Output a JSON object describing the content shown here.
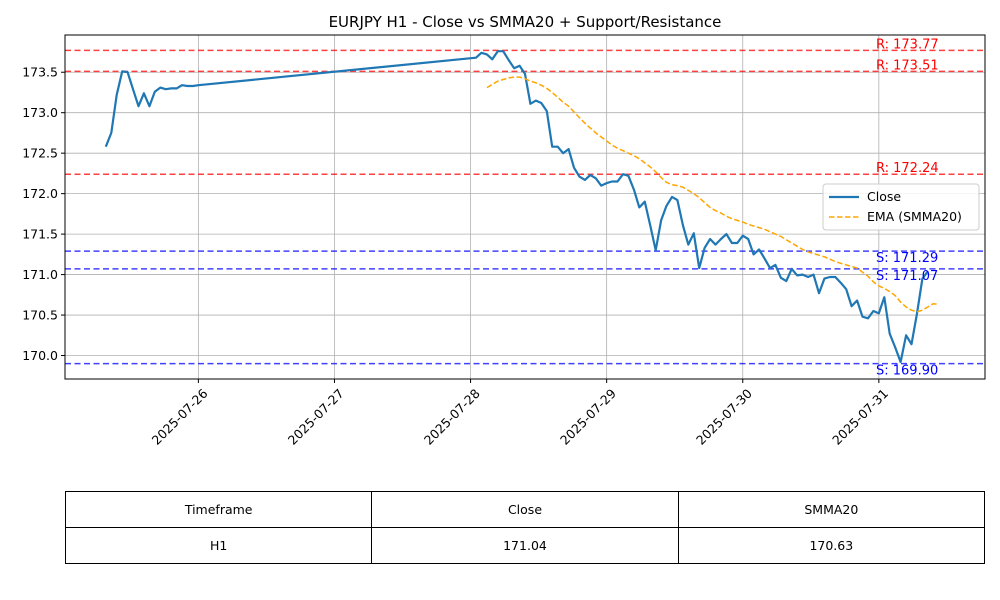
{
  "chart_data": {
    "type": "line",
    "title": "EURJPY H1 - Close vs SMMA20 + Support/Resistance",
    "xlabel": "",
    "ylabel": "",
    "x_tick_labels": [
      "2025-07-26",
      "2025-07-27",
      "2025-07-28",
      "2025-07-29",
      "2025-07-30",
      "2025-07-31"
    ],
    "y_ticks": [
      170.0,
      170.5,
      171.0,
      171.5,
      172.0,
      172.5,
      173.0,
      173.5
    ],
    "y_tick_labels": [
      "170.0",
      "170.5",
      "171.0",
      "171.5",
      "172.0",
      "172.5",
      "173.0",
      "173.5"
    ],
    "ylim": [
      169.71,
      173.96
    ],
    "xlim_days_from_2025_07_26": [
      -0.98,
      5.78
    ],
    "grid": true,
    "legend_position": "center-right",
    "series": [
      {
        "name": "Close",
        "color": "#1f77b4",
        "style": "solid",
        "x_days_from_2025_07_26": [
          -0.68,
          -0.64,
          -0.6,
          -0.56,
          -0.52,
          -0.48,
          -0.44,
          -0.4,
          -0.36,
          -0.32,
          -0.28,
          -0.24,
          -0.2,
          -0.16,
          -0.12,
          -0.08,
          -0.04,
          0.0,
          2.04,
          2.08,
          2.12,
          2.16,
          2.2,
          2.24,
          2.28,
          2.32,
          2.36,
          2.4,
          2.44,
          2.48,
          2.52,
          2.56,
          2.6,
          2.64,
          2.68,
          2.72,
          2.76,
          2.8,
          2.84,
          2.88,
          2.92,
          2.96,
          3.0,
          3.04,
          3.08,
          3.12,
          3.16,
          3.2,
          3.24,
          3.28,
          3.32,
          3.36,
          3.4,
          3.44,
          3.48,
          3.52,
          3.56,
          3.6,
          3.64,
          3.68,
          3.72,
          3.76,
          3.8,
          3.84,
          3.88,
          3.92,
          3.96,
          4.0,
          4.04,
          4.08,
          4.12,
          4.16,
          4.2,
          4.24,
          4.28,
          4.32,
          4.36,
          4.4,
          4.44,
          4.48,
          4.52,
          4.56,
          4.6,
          4.64,
          4.68,
          4.72,
          4.76,
          4.8,
          4.84,
          4.88,
          4.92,
          4.96,
          5.0,
          5.04,
          5.08,
          5.12,
          5.16,
          5.2,
          5.24,
          5.28,
          5.32,
          5.36,
          5.4,
          5.44
        ],
        "values": [
          172.58,
          172.75,
          173.22,
          173.51,
          173.5,
          173.29,
          173.08,
          173.24,
          173.08,
          173.26,
          173.31,
          173.29,
          173.3,
          173.3,
          173.34,
          173.33,
          173.33,
          173.34,
          173.68,
          173.74,
          173.72,
          173.66,
          173.76,
          173.76,
          173.65,
          173.55,
          173.58,
          173.48,
          173.11,
          173.15,
          173.12,
          173.02,
          172.58,
          172.58,
          172.5,
          172.55,
          172.32,
          172.21,
          172.17,
          172.23,
          172.19,
          172.1,
          172.13,
          172.15,
          172.15,
          172.24,
          172.22,
          172.05,
          171.83,
          171.9,
          171.61,
          171.3,
          171.67,
          171.85,
          171.96,
          171.92,
          171.61,
          171.37,
          171.51,
          171.08,
          171.33,
          171.44,
          171.37,
          171.44,
          171.5,
          171.39,
          171.39,
          171.48,
          171.44,
          171.25,
          171.31,
          171.2,
          171.08,
          171.12,
          170.96,
          170.92,
          171.07,
          170.99,
          171.0,
          170.97,
          171.0,
          170.77,
          170.95,
          170.97,
          170.97,
          170.9,
          170.82,
          170.61,
          170.68,
          170.48,
          170.46,
          170.55,
          170.52,
          170.72,
          170.27,
          170.1,
          169.92,
          170.25,
          170.14,
          170.52,
          170.95,
          171.04
        ],
        "last_value": 171.04
      },
      {
        "name": "EMA (SMMA20)",
        "color": "#ffa500",
        "style": "dashed",
        "x_days_from_2025_07_26": [
          2.12,
          2.16,
          2.2,
          2.24,
          2.28,
          2.32,
          2.36,
          2.4,
          2.44,
          2.48,
          2.52,
          2.56,
          2.6,
          2.64,
          2.68,
          2.72,
          2.76,
          2.8,
          2.84,
          2.88,
          2.92,
          2.96,
          3.0,
          3.04,
          3.08,
          3.12,
          3.16,
          3.2,
          3.24,
          3.28,
          3.32,
          3.36,
          3.4,
          3.44,
          3.48,
          3.52,
          3.56,
          3.6,
          3.64,
          3.68,
          3.72,
          3.76,
          3.8,
          3.84,
          3.88,
          3.92,
          3.96,
          4.0,
          4.04,
          4.08,
          4.12,
          4.16,
          4.2,
          4.24,
          4.28,
          4.32,
          4.36,
          4.4,
          4.44,
          4.48,
          4.52,
          4.56,
          4.6,
          4.64,
          4.68,
          4.72,
          4.76,
          4.8,
          4.84,
          4.88,
          4.92,
          4.96,
          5.0,
          5.04,
          5.08,
          5.12,
          5.16,
          5.2,
          5.24,
          5.28,
          5.32,
          5.36,
          5.4,
          5.44
        ],
        "values": [
          173.31,
          173.35,
          173.39,
          173.41,
          173.43,
          173.44,
          173.44,
          173.42,
          173.39,
          173.37,
          173.34,
          173.3,
          173.25,
          173.19,
          173.13,
          173.08,
          173.01,
          172.94,
          172.87,
          172.81,
          172.75,
          172.7,
          172.65,
          172.6,
          172.56,
          172.53,
          172.5,
          172.47,
          172.43,
          172.38,
          172.33,
          172.27,
          172.2,
          172.14,
          172.11,
          172.1,
          172.08,
          172.04,
          172.0,
          171.95,
          171.89,
          171.83,
          171.79,
          171.76,
          171.72,
          171.69,
          171.67,
          171.65,
          171.62,
          171.6,
          171.58,
          171.56,
          171.53,
          171.5,
          171.47,
          171.43,
          171.39,
          171.35,
          171.31,
          171.28,
          171.26,
          171.24,
          171.22,
          171.19,
          171.16,
          171.14,
          171.12,
          171.1,
          171.08,
          171.03,
          170.98,
          170.91,
          170.86,
          170.83,
          170.79,
          170.74,
          170.66,
          170.6,
          170.56,
          170.54,
          170.56,
          170.6,
          170.64,
          170.63
        ],
        "last_value": 170.63
      }
    ],
    "levels": [
      {
        "kind": "resistance",
        "value": 173.77,
        "label": "R: 173.77",
        "color": "#ff0000"
      },
      {
        "kind": "resistance",
        "value": 173.51,
        "label": "R: 173.51",
        "color": "#ff0000"
      },
      {
        "kind": "resistance",
        "value": 172.24,
        "label": "R: 172.24",
        "color": "#ff0000"
      },
      {
        "kind": "support",
        "value": 171.29,
        "label": "S: 171.29",
        "color": "#0000ff"
      },
      {
        "kind": "support",
        "value": 171.07,
        "label": "S: 171.07",
        "color": "#0000ff"
      },
      {
        "kind": "support",
        "value": 169.9,
        "label": "S: 169.90",
        "color": "#0000ff"
      }
    ]
  },
  "table": {
    "headers": [
      "Timeframe",
      "Close",
      "SMMA20"
    ],
    "row": [
      "H1",
      "171.04",
      "170.63"
    ]
  }
}
